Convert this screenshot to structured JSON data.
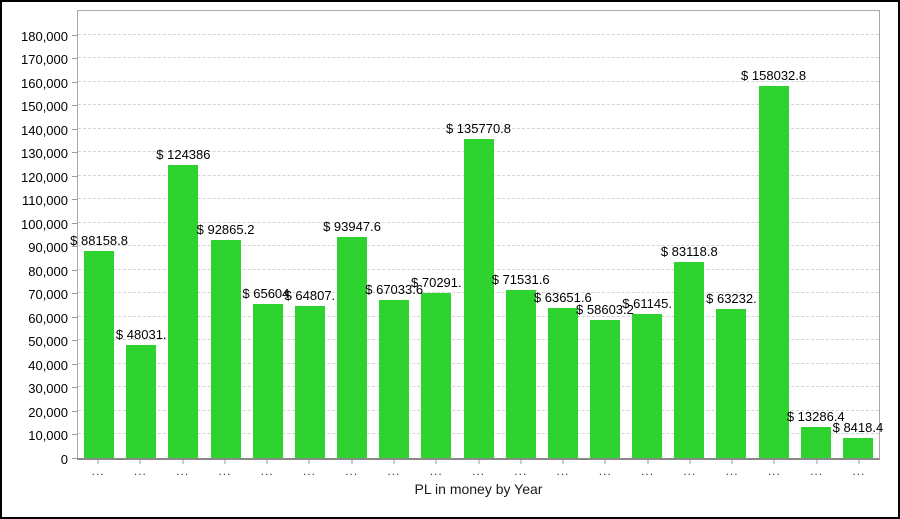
{
  "chart_data": {
    "type": "bar",
    "title": "",
    "xlabel": "PL in money by Year",
    "ylabel": "",
    "categories": [
      "...",
      "...",
      "...",
      "...",
      "...",
      "...",
      "...",
      "...",
      "...",
      "...",
      "...",
      "...",
      "...",
      "...",
      "...",
      "...",
      "...",
      "...",
      "..."
    ],
    "values": [
      88158.8,
      48031,
      124386,
      92865.2,
      65604,
      64807,
      93947.6,
      67033.6,
      70291,
      135770.8,
      71531.6,
      63651.6,
      58603.2,
      61145,
      83118.8,
      63232,
      158032.8,
      13286.4,
      8418.4
    ],
    "bar_labels": [
      "$ 88158.8",
      "$ 48031.",
      "$ 124386",
      "$ 92865.2",
      "$ 65604.",
      "$ 64807.",
      "$ 93947.6",
      "$ 67033.6",
      "$ 70291.",
      "$ 135770.8",
      "$ 71531.6",
      "$ 63651.6",
      "$ 58603.2",
      "$ 61145.",
      "$ 83118.8",
      "$ 63232.",
      "$ 158032.8",
      "$ 13286.4",
      "$ 8418.4"
    ],
    "ylim": [
      0,
      190000
    ],
    "ytick_step": 10000,
    "ytick_labels": [
      "0",
      "10,000",
      "20,000",
      "30,000",
      "40,000",
      "50,000",
      "60,000",
      "70,000",
      "80,000",
      "90,000",
      "100,000",
      "110,000",
      "120,000",
      "130,000",
      "140,000",
      "150,000",
      "160,000",
      "170,000",
      "180,000"
    ],
    "grid": "horizontal-dashed",
    "legend": "none",
    "bar_color": "#2fd32f",
    "label_color": "#000000"
  }
}
